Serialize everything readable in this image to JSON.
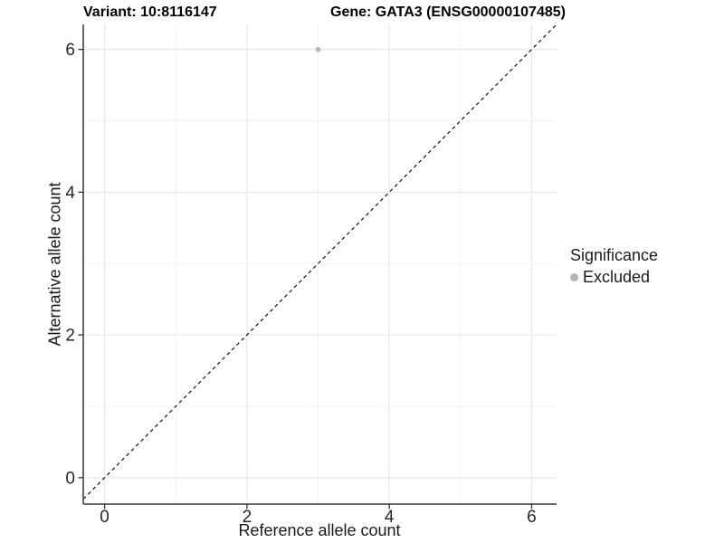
{
  "title": {
    "variant": "Variant: 10:8116147",
    "gene": "Gene: GATA3 (ENSG00000107485)"
  },
  "legend": {
    "title": "Significance",
    "items": [
      {
        "label": "Excluded",
        "color": "#b5b5b5"
      }
    ]
  },
  "chart_data": {
    "type": "scatter",
    "title": "Variant: 10:8116147  /  Gene: GATA3 (ENSG00000107485)",
    "xlabel": "Reference allele count",
    "ylabel": "Alternative allele count",
    "xlim": [
      -0.3,
      6.35
    ],
    "ylim": [
      -0.37,
      6.35
    ],
    "x_major_ticks": [
      0,
      2,
      4,
      6
    ],
    "x_minor_ticks": [
      1,
      3,
      5
    ],
    "y_major_ticks": [
      0,
      2,
      4,
      6
    ],
    "y_minor_ticks": [
      1,
      3,
      5
    ],
    "grid": true,
    "legend_position": "right",
    "series": [
      {
        "name": "Excluded",
        "color": "#b5b5b5",
        "points": [
          {
            "x": 3,
            "y": 6
          }
        ]
      }
    ],
    "reference_line": {
      "type": "identity",
      "style": "dashed",
      "color": "#111111",
      "label": "y = x"
    }
  },
  "colors": {
    "background": "#ffffff",
    "grid_major": "#e8e8e8",
    "grid_minor": "#f2f2f2",
    "axis_line": "#555555",
    "tick_mark": "#333333",
    "tick_label": "#262626",
    "point": "#b5b5b5"
  }
}
